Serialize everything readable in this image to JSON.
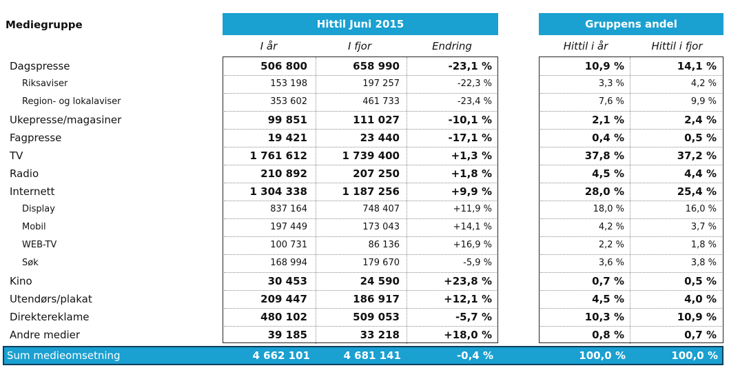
{
  "header": {
    "group_label": "Mediegruppe",
    "period_banner": "Hittil Juni 2015",
    "share_banner": "Gruppens andel",
    "columns": [
      "I år",
      "I fjor",
      "Endring",
      "Hittil i år",
      "Hittil i fjor"
    ]
  },
  "rows": [
    {
      "kind": "main",
      "label": "Dagspresse",
      "i_ar": "506 800",
      "i_fjor": "658 990",
      "endring": "-23,1 %",
      "andel_ar": "10,9 %",
      "andel_fjor": "14,1 %"
    },
    {
      "kind": "sub",
      "label": "Riksaviser",
      "i_ar": "153 198",
      "i_fjor": "197 257",
      "endring": "-22,3 %",
      "andel_ar": "3,3 %",
      "andel_fjor": "4,2 %"
    },
    {
      "kind": "sub",
      "label": "Region- og lokalaviser",
      "i_ar": "353 602",
      "i_fjor": "461 733",
      "endring": "-23,4 %",
      "andel_ar": "7,6 %",
      "andel_fjor": "9,9 %"
    },
    {
      "kind": "main",
      "label": "Ukepresse/magasiner",
      "i_ar": "99 851",
      "i_fjor": "111 027",
      "endring": "-10,1 %",
      "andel_ar": "2,1 %",
      "andel_fjor": "2,4 %"
    },
    {
      "kind": "main",
      "label": "Fagpresse",
      "i_ar": "19 421",
      "i_fjor": "23 440",
      "endring": "-17,1 %",
      "andel_ar": "0,4 %",
      "andel_fjor": "0,5 %"
    },
    {
      "kind": "main",
      "label": "TV",
      "i_ar": "1 761 612",
      "i_fjor": "1 739 400",
      "endring": "+1,3 %",
      "andel_ar": "37,8 %",
      "andel_fjor": "37,2 %"
    },
    {
      "kind": "main",
      "label": "Radio",
      "i_ar": "210 892",
      "i_fjor": "207 250",
      "endring": "+1,8 %",
      "andel_ar": "4,5 %",
      "andel_fjor": "4,4 %"
    },
    {
      "kind": "main",
      "label": "Internett",
      "i_ar": "1 304 338",
      "i_fjor": "1 187 256",
      "endring": "+9,9 %",
      "andel_ar": "28,0 %",
      "andel_fjor": "25,4 %"
    },
    {
      "kind": "sub",
      "label": "Display",
      "i_ar": "837 164",
      "i_fjor": "748 407",
      "endring": "+11,9 %",
      "andel_ar": "18,0 %",
      "andel_fjor": "16,0 %"
    },
    {
      "kind": "sub",
      "label": "Mobil",
      "i_ar": "197 449",
      "i_fjor": "173 043",
      "endring": "+14,1 %",
      "andel_ar": "4,2 %",
      "andel_fjor": "3,7 %"
    },
    {
      "kind": "sub",
      "label": "WEB-TV",
      "i_ar": "100 731",
      "i_fjor": "86 136",
      "endring": "+16,9 %",
      "andel_ar": "2,2 %",
      "andel_fjor": "1,8 %"
    },
    {
      "kind": "sub",
      "label": "Søk",
      "i_ar": "168 994",
      "i_fjor": "179 670",
      "endring": "-5,9 %",
      "andel_ar": "3,6 %",
      "andel_fjor": "3,8 %"
    },
    {
      "kind": "main",
      "label": "Kino",
      "i_ar": "30 453",
      "i_fjor": "24 590",
      "endring": "+23,8 %",
      "andel_ar": "0,7 %",
      "andel_fjor": "0,5 %"
    },
    {
      "kind": "main",
      "label": "Utendørs/plakat",
      "i_ar": "209 447",
      "i_fjor": "186 917",
      "endring": "+12,1 %",
      "andel_ar": "4,5 %",
      "andel_fjor": "4,0 %"
    },
    {
      "kind": "main",
      "label": "Direktereklame",
      "i_ar": "480 102",
      "i_fjor": "509 053",
      "endring": "-5,7 %",
      "andel_ar": "10,3 %",
      "andel_fjor": "10,9 %"
    },
    {
      "kind": "main",
      "label": "Andre medier",
      "i_ar": "39 185",
      "i_fjor": "33 218",
      "endring": "+18,0 %",
      "andel_ar": "0,8 %",
      "andel_fjor": "0,7 %"
    }
  ],
  "total": {
    "label": "Sum medieomsetning",
    "i_ar": "4 662 101",
    "i_fjor": "4 681 141",
    "endring": "-0,4 %",
    "andel_ar": "100,0 %",
    "andel_fjor": "100,0 %"
  },
  "colors": {
    "accent": "#1aa0d1",
    "total_border": "#0e3f5c"
  }
}
